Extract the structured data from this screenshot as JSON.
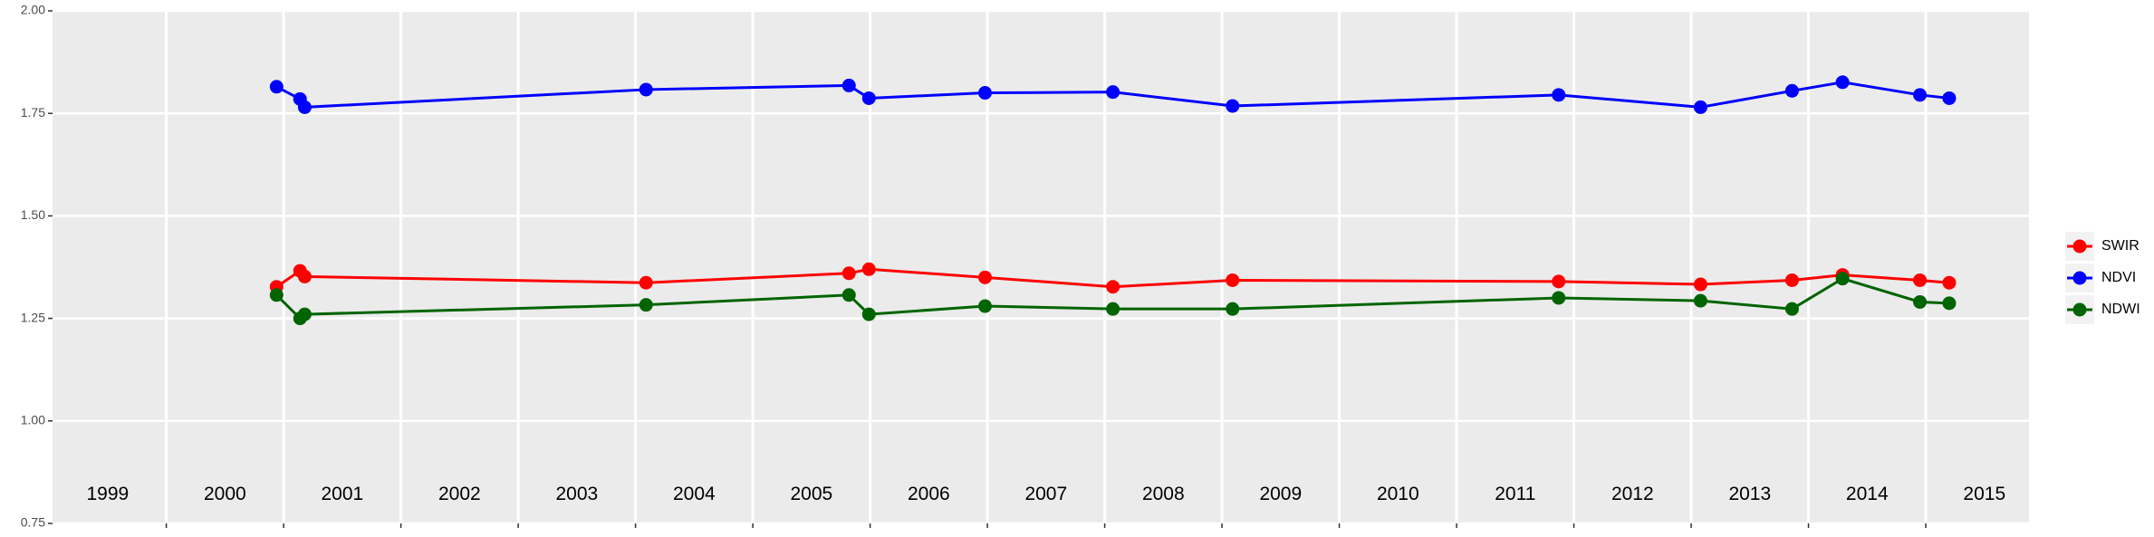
{
  "chart_data": {
    "type": "line",
    "xlim": [
      1999.03,
      2015.88
    ],
    "ylim": [
      0.75,
      2.0
    ],
    "xticks": [
      2000,
      2001,
      2002,
      2003,
      2004,
      2005,
      2006,
      2007,
      2008,
      2009,
      2010,
      2011,
      2012,
      2013,
      2014,
      2015
    ],
    "yticks": [
      0.75,
      {
        "value": 1.0,
        "label": "1.00"
      },
      1.25,
      {
        "value": 1.5,
        "label": "1.50"
      },
      1.75,
      {
        "value": 2.0,
        "label": "2.00"
      }
    ],
    "grid": true,
    "legend": "right",
    "x": [
      2000.94,
      2001.14,
      2001.18,
      2004.09,
      2005.82,
      2005.99,
      2006.98,
      2008.07,
      2009.09,
      2011.87,
      2013.08,
      2013.86,
      2014.29,
      2014.95,
      2015.2
    ],
    "series": [
      {
        "name": "SWIR",
        "color": "#ff0000",
        "values": [
          1.327,
          1.366,
          1.352,
          1.337,
          1.36,
          1.37,
          1.35,
          1.327,
          1.343,
          1.34,
          1.333,
          1.343,
          1.356,
          1.343,
          1.337
        ]
      },
      {
        "name": "NDVI",
        "color": "#0000ff",
        "values": [
          1.815,
          1.785,
          1.765,
          1.808,
          1.818,
          1.787,
          1.8,
          1.802,
          1.768,
          1.795,
          1.765,
          1.805,
          1.826,
          1.795,
          1.787
        ]
      },
      {
        "name": "NDWI",
        "color": "#006400",
        "values": [
          1.307,
          1.25,
          1.26,
          1.283,
          1.307,
          1.26,
          1.28,
          1.273,
          1.273,
          1.3,
          1.293,
          1.273,
          1.347,
          1.29,
          1.287
        ]
      }
    ],
    "annotations": [
      {
        "text": "1999",
        "x": 1999.5,
        "y": 0.82
      },
      {
        "text": "2000",
        "x": 2000.5,
        "y": 0.82
      },
      {
        "text": "2001",
        "x": 2001.5,
        "y": 0.82
      },
      {
        "text": "2002",
        "x": 2002.5,
        "y": 0.82
      },
      {
        "text": "2003",
        "x": 2003.5,
        "y": 0.82
      },
      {
        "text": "2004",
        "x": 2004.5,
        "y": 0.82
      },
      {
        "text": "2005",
        "x": 2005.5,
        "y": 0.82
      },
      {
        "text": "2006",
        "x": 2006.5,
        "y": 0.82
      },
      {
        "text": "2007",
        "x": 2007.5,
        "y": 0.82
      },
      {
        "text": "2008",
        "x": 2008.5,
        "y": 0.82
      },
      {
        "text": "2009",
        "x": 2009.5,
        "y": 0.82
      },
      {
        "text": "2010",
        "x": 2010.5,
        "y": 0.82
      },
      {
        "text": "2011",
        "x": 2011.5,
        "y": 0.82
      },
      {
        "text": "2012",
        "x": 2012.5,
        "y": 0.82
      },
      {
        "text": "2013",
        "x": 2013.5,
        "y": 0.82
      },
      {
        "text": "2014",
        "x": 2014.5,
        "y": 0.82
      },
      {
        "text": "2015",
        "x": 2015.5,
        "y": 0.82
      }
    ]
  }
}
